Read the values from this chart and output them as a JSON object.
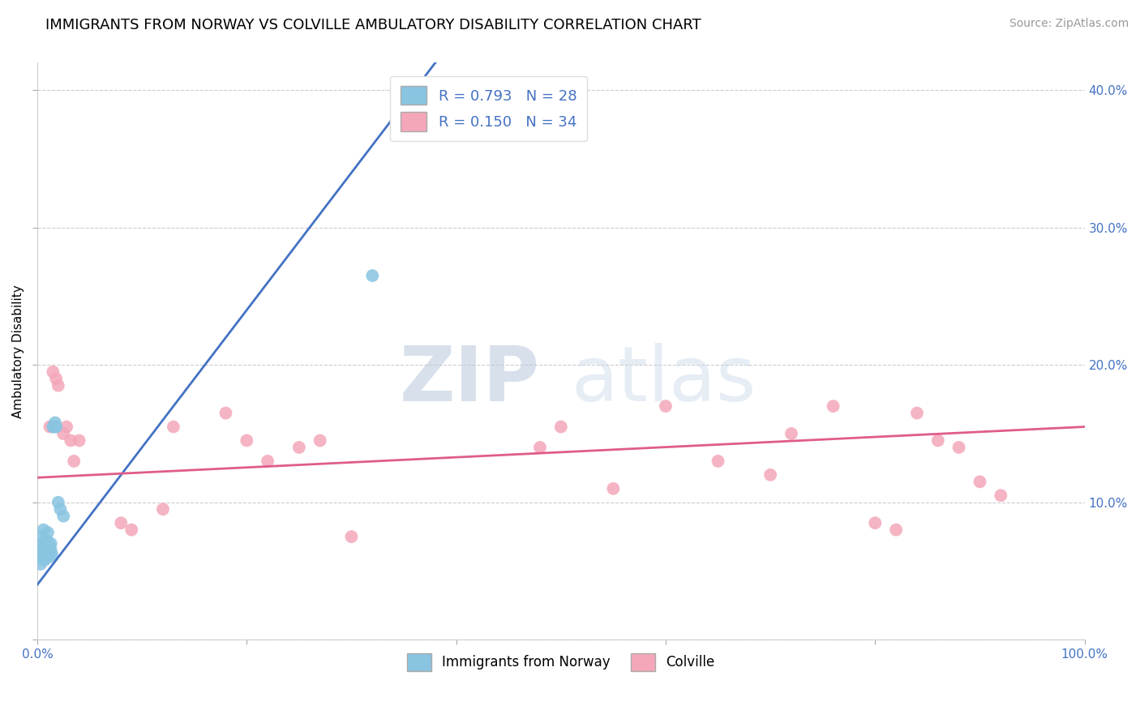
{
  "title": "IMMIGRANTS FROM NORWAY VS COLVILLE AMBULATORY DISABILITY CORRELATION CHART",
  "source": "Source: ZipAtlas.com",
  "ylabel": "Ambulatory Disability",
  "xlim": [
    0,
    1.0
  ],
  "ylim": [
    0,
    0.42
  ],
  "xticks": [
    0.0,
    0.2,
    0.4,
    0.6,
    0.8,
    1.0
  ],
  "xtick_labels": [
    "0.0%",
    "",
    "",
    "",
    "",
    "100.0%"
  ],
  "yticks": [
    0.0,
    0.1,
    0.2,
    0.3,
    0.4
  ],
  "ytick_labels_right": [
    "",
    "10.0%",
    "20.0%",
    "30.0%",
    "40.0%"
  ],
  "grid_color": "#cccccc",
  "background_color": "#ffffff",
  "norway_color": "#89c4e1",
  "colville_color": "#f4a7b9",
  "norway_line_color": "#4472c4",
  "colville_line_color": "#e05c8a",
  "norway_R": 0.793,
  "norway_N": 28,
  "colville_R": 0.15,
  "colville_N": 34,
  "norway_points_x": [
    0.002,
    0.003,
    0.004,
    0.004,
    0.005,
    0.005,
    0.006,
    0.006,
    0.007,
    0.007,
    0.008,
    0.008,
    0.009,
    0.01,
    0.01,
    0.011,
    0.012,
    0.013,
    0.013,
    0.014,
    0.015,
    0.016,
    0.017,
    0.018,
    0.02,
    0.022,
    0.025,
    0.32
  ],
  "norway_points_y": [
    0.06,
    0.055,
    0.065,
    0.07,
    0.06,
    0.075,
    0.065,
    0.08,
    0.058,
    0.07,
    0.062,
    0.068,
    0.072,
    0.065,
    0.078,
    0.06,
    0.068,
    0.065,
    0.07,
    0.062,
    0.155,
    0.155,
    0.158,
    0.155,
    0.1,
    0.095,
    0.09,
    0.265
  ],
  "colville_points_x": [
    0.012,
    0.015,
    0.018,
    0.02,
    0.025,
    0.028,
    0.032,
    0.035,
    0.04,
    0.08,
    0.09,
    0.12,
    0.13,
    0.18,
    0.2,
    0.22,
    0.25,
    0.27,
    0.3,
    0.48,
    0.5,
    0.55,
    0.6,
    0.65,
    0.7,
    0.72,
    0.76,
    0.8,
    0.82,
    0.84,
    0.86,
    0.88,
    0.9,
    0.92
  ],
  "colville_points_y": [
    0.155,
    0.195,
    0.19,
    0.185,
    0.15,
    0.155,
    0.145,
    0.13,
    0.145,
    0.085,
    0.08,
    0.095,
    0.155,
    0.165,
    0.145,
    0.13,
    0.14,
    0.145,
    0.075,
    0.14,
    0.155,
    0.11,
    0.17,
    0.13,
    0.12,
    0.15,
    0.17,
    0.085,
    0.08,
    0.165,
    0.145,
    0.14,
    0.115,
    0.105
  ],
  "norway_trendline_x": [
    0.0,
    0.38
  ],
  "norway_trendline_y": [
    0.04,
    0.42
  ],
  "colville_trendline_x": [
    0.0,
    1.0
  ],
  "colville_trendline_y": [
    0.118,
    0.155
  ],
  "watermark_zip": "ZIP",
  "watermark_atlas": "atlas",
  "title_fontsize": 13,
  "legend_fontsize": 13,
  "tick_fontsize": 11,
  "ylabel_fontsize": 11,
  "source_fontsize": 10,
  "marker_size": 130
}
